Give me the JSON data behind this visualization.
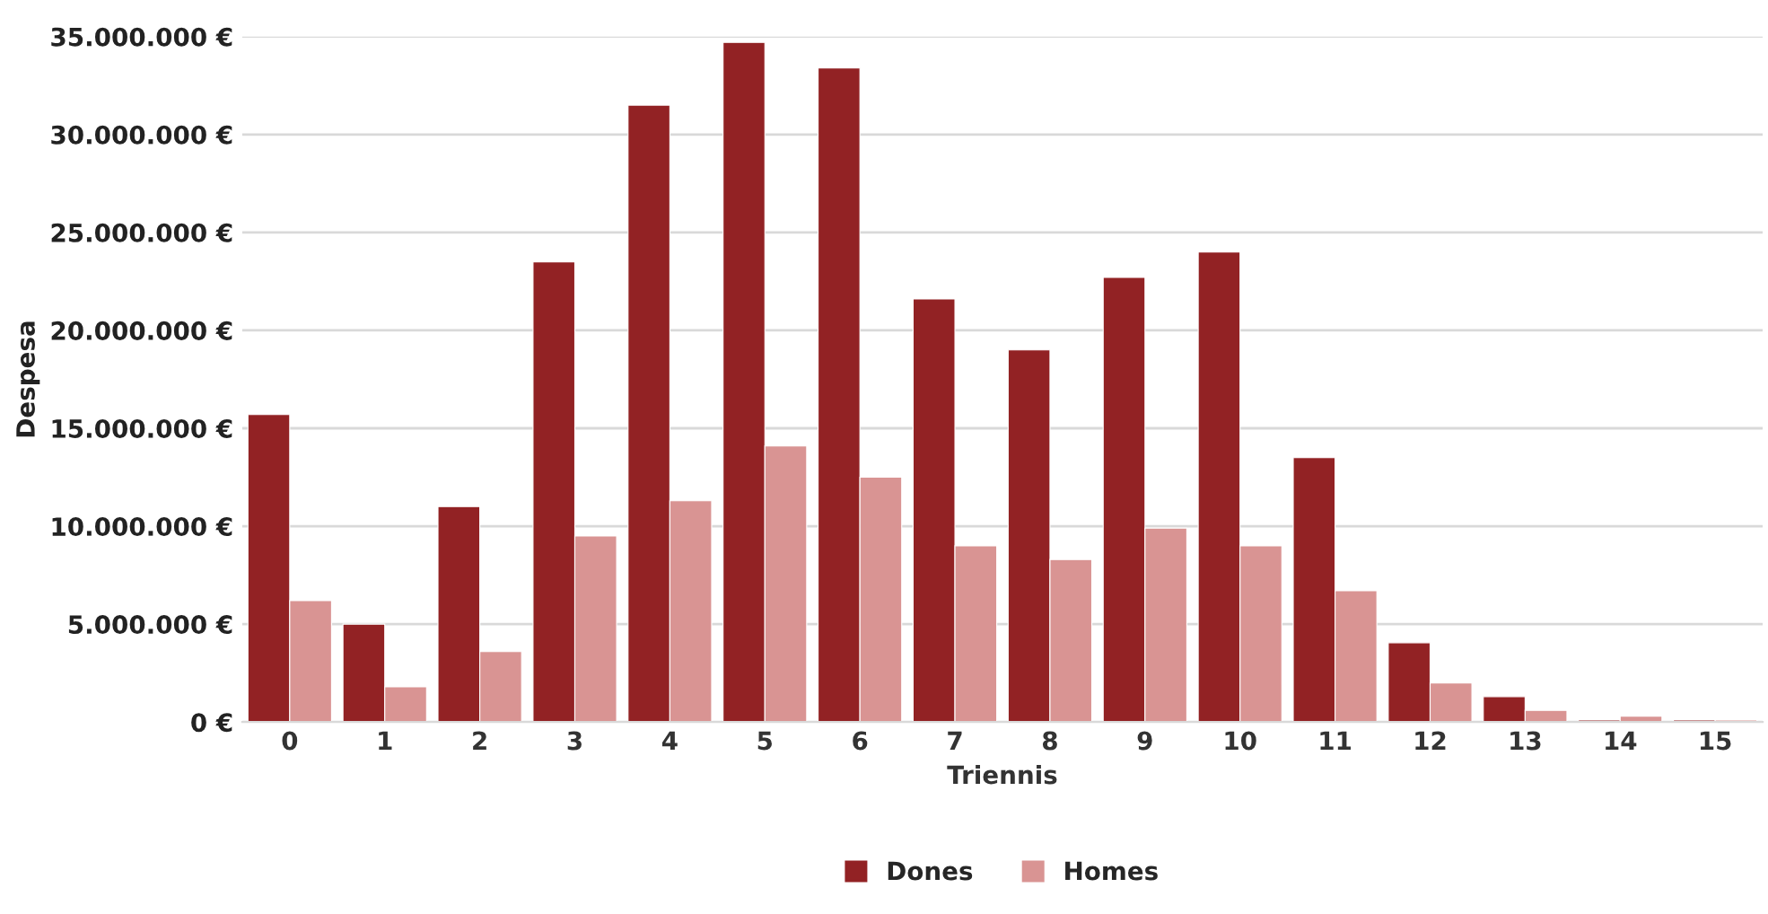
{
  "chart_data": {
    "type": "bar",
    "xlabel": "Triennis",
    "ylabel": "Despesa",
    "categories": [
      "0",
      "1",
      "2",
      "3",
      "4",
      "5",
      "6",
      "7",
      "8",
      "9",
      "10",
      "11",
      "12",
      "13",
      "14",
      "15"
    ],
    "series": [
      {
        "name": "Dones",
        "color": "#922224",
        "values": [
          15700000,
          5000000,
          11000000,
          23500000,
          31500000,
          34700000,
          33400000,
          21600000,
          19000000,
          22700000,
          24000000,
          13500000,
          4050000,
          1300000,
          100000,
          100000
        ]
      },
      {
        "name": "Homes",
        "color": "#d99493",
        "values": [
          6200000,
          1800000,
          3600000,
          9500000,
          11300000,
          14100000,
          12500000,
          9000000,
          8300000,
          9900000,
          9000000,
          6700000,
          2000000,
          600000,
          300000,
          100000
        ]
      }
    ],
    "ylim": [
      0,
      35000000
    ],
    "yticks": [
      {
        "value": 0,
        "label": "0 €"
      },
      {
        "value": 5000000,
        "label": "5.000.000 €"
      },
      {
        "value": 10000000,
        "label": "10.000.000 €"
      },
      {
        "value": 15000000,
        "label": "15.000.000 €"
      },
      {
        "value": 20000000,
        "label": "20.000.000 €"
      },
      {
        "value": 25000000,
        "label": "25.000.000 €"
      },
      {
        "value": 30000000,
        "label": "30.000.000 €"
      },
      {
        "value": 35000000,
        "label": "35.000.000 €"
      }
    ],
    "grid": "y",
    "legend": "bottom"
  }
}
